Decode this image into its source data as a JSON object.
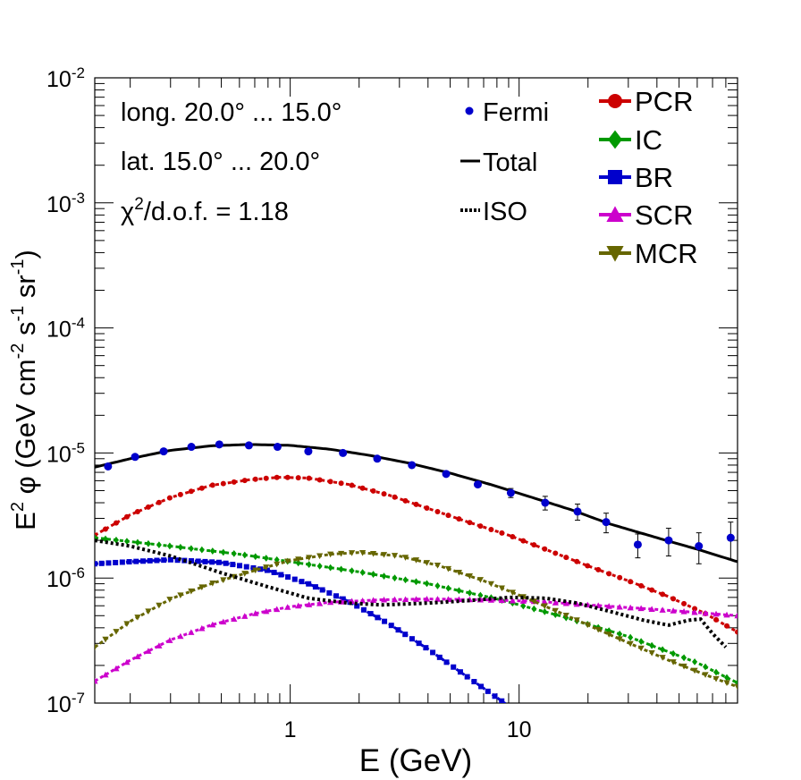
{
  "chart_data": {
    "type": "line",
    "xscale": "log",
    "yscale": "log",
    "xlim": [
      0.14,
      90
    ],
    "ylim": [
      1e-07,
      0.01
    ],
    "xlabel": "E (GeV)",
    "ylabel_parts": [
      "E",
      "2",
      " φ (GeV cm",
      "-2",
      " s",
      "-1",
      " sr",
      "-1",
      ")"
    ],
    "x_ticks": [
      {
        "value": 1,
        "label": "1"
      },
      {
        "value": 10,
        "label": "10"
      }
    ],
    "y_ticks": [
      {
        "value": 1e-07,
        "base": "10",
        "exp": "-7"
      },
      {
        "value": 1e-06,
        "base": "10",
        "exp": "-6"
      },
      {
        "value": 1e-05,
        "base": "10",
        "exp": "-5"
      },
      {
        "value": 0.0001,
        "base": "10",
        "exp": "-4"
      },
      {
        "value": 0.001,
        "base": "10",
        "exp": "-3"
      },
      {
        "value": 0.01,
        "base": "10",
        "exp": "-2"
      }
    ],
    "annotations": {
      "longitude": "long. 20.0° ... 15.0°",
      "latitude": "lat. 15.0° ... 20.0°",
      "chi_prefix": "χ",
      "chi_sup": "2",
      "chi_suffix": "/d.o.f. = 1.18"
    },
    "legend_left": [
      {
        "name": "Fermi",
        "color": "#0000cc",
        "style": "dot"
      },
      {
        "name": "Total",
        "color": "#000000",
        "style": "solid"
      },
      {
        "name": "ISO",
        "color": "#000000",
        "style": "dotted"
      }
    ],
    "legend_right": [
      {
        "name": "PCR",
        "color": "#cc0000",
        "marker": "circle"
      },
      {
        "name": "IC",
        "color": "#009900",
        "marker": "diamond"
      },
      {
        "name": "BR",
        "color": "#0000cc",
        "marker": "square"
      },
      {
        "name": "SCR",
        "color": "#cc00cc",
        "marker": "triangle-up"
      },
      {
        "name": "MCR",
        "color": "#666600",
        "marker": "triangle-down"
      }
    ],
    "fermi_points": [
      {
        "x": 0.16,
        "y": 7.8e-06
      },
      {
        "x": 0.21,
        "y": 9.3e-06
      },
      {
        "x": 0.28,
        "y": 1.03e-05
      },
      {
        "x": 0.37,
        "y": 1.12e-05
      },
      {
        "x": 0.49,
        "y": 1.17e-05
      },
      {
        "x": 0.66,
        "y": 1.15e-05
      },
      {
        "x": 0.88,
        "y": 1.12e-05
      },
      {
        "x": 1.2,
        "y": 1.03e-05
      },
      {
        "x": 1.7,
        "y": 1e-05
      },
      {
        "x": 2.4,
        "y": 9e-06
      },
      {
        "x": 3.4,
        "y": 8e-06
      },
      {
        "x": 4.8,
        "y": 6.8e-06
      },
      {
        "x": 6.6,
        "y": 5.6e-06
      },
      {
        "x": 9.2,
        "y": 4.8e-06,
        "err": 4e-07
      },
      {
        "x": 13,
        "y": 4e-06,
        "err": 5e-07
      },
      {
        "x": 18,
        "y": 3.4e-06,
        "err": 5e-07
      },
      {
        "x": 24,
        "y": 2.8e-06,
        "err": 5e-07
      },
      {
        "x": 33,
        "y": 1.85e-06,
        "err": 4e-07
      },
      {
        "x": 45,
        "y": 2e-06,
        "err": 5e-07
      },
      {
        "x": 61,
        "y": 1.8e-06,
        "err": 5e-07
      },
      {
        "x": 84,
        "y": 2.1e-06,
        "err": 7e-07
      }
    ],
    "series": [
      {
        "name": "Total",
        "color": "#000000",
        "style": "solid",
        "points": [
          [
            0.14,
            7.7e-06
          ],
          [
            0.2,
            9e-06
          ],
          [
            0.3,
            1.05e-05
          ],
          [
            0.45,
            1.14e-05
          ],
          [
            0.66,
            1.17e-05
          ],
          [
            1.0,
            1.15e-05
          ],
          [
            1.5,
            1.07e-05
          ],
          [
            2.2,
            9.6e-06
          ],
          [
            3.3,
            8.3e-06
          ],
          [
            5.0,
            6.9e-06
          ],
          [
            7.5,
            5.6e-06
          ],
          [
            11,
            4.5e-06
          ],
          [
            17,
            3.5e-06
          ],
          [
            25,
            2.7e-06
          ],
          [
            40,
            2.1e-06
          ],
          [
            60,
            1.7e-06
          ],
          [
            90,
            1.35e-06
          ]
        ]
      },
      {
        "name": "PCR",
        "color": "#cc0000",
        "style": "markers",
        "marker": "circle",
        "points": [
          [
            0.14,
            2.2e-06
          ],
          [
            0.2,
            3.2e-06
          ],
          [
            0.3,
            4.4e-06
          ],
          [
            0.45,
            5.5e-06
          ],
          [
            0.66,
            6.1e-06
          ],
          [
            0.9,
            6.4e-06
          ],
          [
            1.2,
            6.3e-06
          ],
          [
            1.8,
            5.6e-06
          ],
          [
            2.7,
            4.6e-06
          ],
          [
            4.0,
            3.6e-06
          ],
          [
            6.0,
            2.8e-06
          ],
          [
            9.0,
            2.2e-06
          ],
          [
            13,
            1.7e-06
          ],
          [
            20,
            1.25e-06
          ],
          [
            30,
            9.5e-07
          ],
          [
            45,
            7.1e-07
          ],
          [
            65,
            5.2e-07
          ],
          [
            90,
            3.7e-07
          ]
        ]
      },
      {
        "name": "IC",
        "color": "#009900",
        "style": "markers",
        "marker": "diamond",
        "points": [
          [
            0.14,
            2.1e-06
          ],
          [
            0.3,
            1.8e-06
          ],
          [
            0.6,
            1.55e-06
          ],
          [
            1.0,
            1.35e-06
          ],
          [
            2.0,
            1.12e-06
          ],
          [
            4.0,
            9e-07
          ],
          [
            8.0,
            6.8e-07
          ],
          [
            15,
            5e-07
          ],
          [
            30,
            3.4e-07
          ],
          [
            60,
            2.1e-07
          ],
          [
            90,
            1.45e-07
          ]
        ]
      },
      {
        "name": "BR",
        "color": "#0000cc",
        "style": "markers",
        "marker": "square",
        "points": [
          [
            0.14,
            1.3e-06
          ],
          [
            0.2,
            1.35e-06
          ],
          [
            0.3,
            1.4e-06
          ],
          [
            0.5,
            1.33e-06
          ],
          [
            0.8,
            1.15e-06
          ],
          [
            1.2,
            9e-07
          ],
          [
            1.8,
            6.5e-07
          ],
          [
            2.7,
            4.3e-07
          ],
          [
            4.0,
            2.7e-07
          ],
          [
            6.0,
            1.6e-07
          ],
          [
            9.0,
            9.5e-08
          ]
        ]
      },
      {
        "name": "SCR",
        "color": "#cc00cc",
        "style": "markers",
        "marker": "triangle-up",
        "points": [
          [
            0.14,
            1.5e-07
          ],
          [
            0.2,
            2.2e-07
          ],
          [
            0.3,
            3.2e-07
          ],
          [
            0.45,
            4.2e-07
          ],
          [
            0.7,
            5.2e-07
          ],
          [
            1.0,
            5.9e-07
          ],
          [
            1.5,
            6.4e-07
          ],
          [
            2.5,
            6.7e-07
          ],
          [
            4.0,
            6.8e-07
          ],
          [
            7.0,
            6.7e-07
          ],
          [
            12,
            6.5e-07
          ],
          [
            20,
            6.1e-07
          ],
          [
            35,
            5.7e-07
          ],
          [
            60,
            5.3e-07
          ],
          [
            90,
            5e-07
          ]
        ]
      },
      {
        "name": "MCR",
        "color": "#666600",
        "style": "markers",
        "marker": "triangle-down",
        "points": [
          [
            0.14,
            2.8e-07
          ],
          [
            0.2,
            4.5e-07
          ],
          [
            0.3,
            6.8e-07
          ],
          [
            0.45,
            9e-07
          ],
          [
            0.7,
            1.15e-06
          ],
          [
            1.0,
            1.38e-06
          ],
          [
            1.5,
            1.55e-06
          ],
          [
            2.0,
            1.6e-06
          ],
          [
            3.0,
            1.5e-06
          ],
          [
            4.5,
            1.25e-06
          ],
          [
            7.0,
            9.5e-07
          ],
          [
            11,
            6.8e-07
          ],
          [
            17,
            4.8e-07
          ],
          [
            27,
            3.3e-07
          ],
          [
            45,
            2.2e-07
          ],
          [
            70,
            1.6e-07
          ],
          [
            90,
            1.35e-07
          ]
        ]
      },
      {
        "name": "ISO",
        "color": "#000000",
        "style": "dotted",
        "points": [
          [
            0.14,
            2e-06
          ],
          [
            0.2,
            1.8e-06
          ],
          [
            0.3,
            1.5e-06
          ],
          [
            0.5,
            1.1e-06
          ],
          [
            0.8,
            8.5e-07
          ],
          [
            1.2,
            6.9e-07
          ],
          [
            1.8,
            6.3e-07
          ],
          [
            2.5,
            6.1e-07
          ],
          [
            4.0,
            6.3e-07
          ],
          [
            6.0,
            6.6e-07
          ],
          [
            9.0,
            7e-07
          ],
          [
            13,
            6.9e-07
          ],
          [
            18,
            6.3e-07
          ],
          [
            25,
            5.4e-07
          ],
          [
            35,
            4.6e-07
          ],
          [
            45,
            4.2e-07
          ],
          [
            55,
            4.6e-07
          ],
          [
            62,
            4.7e-07
          ],
          [
            70,
            3.6e-07
          ],
          [
            80,
            2.8e-07
          ]
        ]
      }
    ]
  }
}
